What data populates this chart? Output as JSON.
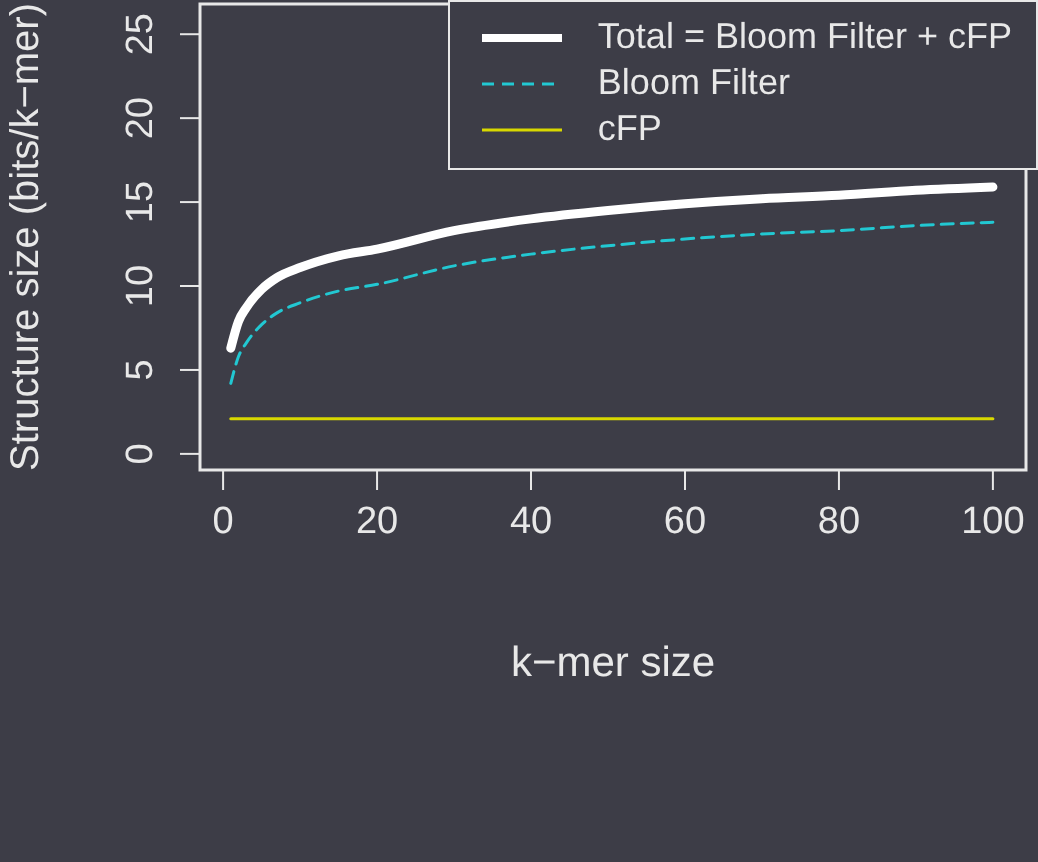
{
  "chart_data": {
    "type": "line",
    "xlabel": "k−mer size",
    "ylabel": "Structure size (bits/k−mer)",
    "xlim": [
      -3,
      104.3
    ],
    "ylim": [
      -0.96,
      26.8
    ],
    "xticks": [
      0,
      20,
      40,
      60,
      80,
      100
    ],
    "yticks": [
      0,
      5,
      10,
      15,
      20,
      25
    ],
    "grid": false,
    "legend": "top right",
    "marker": "none",
    "series": [
      {
        "name": "Total = Bloom Filter + cFP",
        "color": "#ffffff",
        "line_style": "solid",
        "x": [
          1,
          2,
          3,
          5,
          7,
          10,
          15,
          20,
          30,
          40,
          50,
          60,
          70,
          80,
          90,
          100
        ],
        "values": [
          6.3,
          7.9,
          8.7,
          9.8,
          10.5,
          11.1,
          11.8,
          12.2,
          13.3,
          14.0,
          14.5,
          14.9,
          15.2,
          15.4,
          15.7,
          15.9
        ]
      },
      {
        "name": "Bloom Filter",
        "color": "#22c8d2",
        "line_style": "dashed",
        "x": [
          1,
          2,
          3,
          5,
          7,
          10,
          15,
          20,
          30,
          40,
          50,
          60,
          70,
          80,
          90,
          100
        ],
        "values": [
          4.2,
          5.8,
          6.6,
          7.7,
          8.4,
          9.0,
          9.7,
          10.1,
          11.2,
          11.9,
          12.4,
          12.8,
          13.1,
          13.3,
          13.6,
          13.8
        ]
      },
      {
        "name": "cFP",
        "color": "#d8d800",
        "line_style": "solid",
        "x": [
          1,
          100
        ],
        "values": [
          2.1,
          2.1
        ]
      }
    ]
  }
}
